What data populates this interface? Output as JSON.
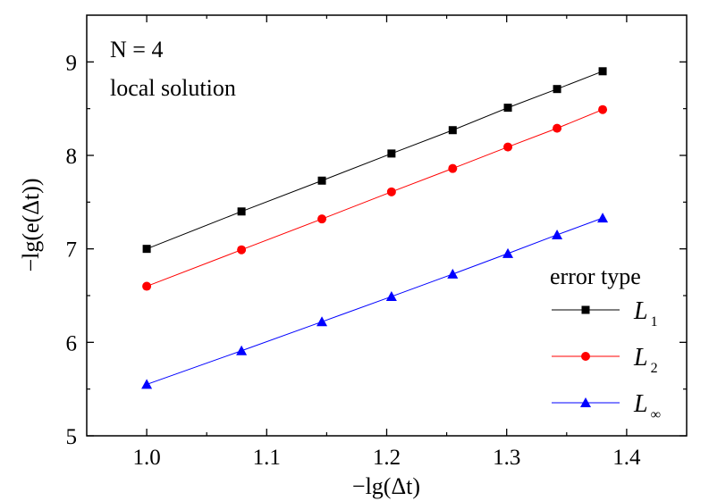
{
  "chart_data": {
    "type": "line",
    "annotations": [
      "N = 4",
      "local solution"
    ],
    "xlabel": "−lg(Δt)",
    "ylabel": "−lg(e(Δt))",
    "xlim": [
      0.95,
      1.45
    ],
    "ylim": [
      5,
      9.5
    ],
    "xticks": [
      "1.0",
      "1.1",
      "1.2",
      "1.3",
      "1.4"
    ],
    "yticks": [
      "5",
      "6",
      "7",
      "8",
      "9"
    ],
    "grid": false,
    "legend": {
      "title": "error type",
      "placement": "bottom-right",
      "entries": [
        {
          "main": "L",
          "sub": "1"
        },
        {
          "main": "L",
          "sub": "2"
        },
        {
          "main": "L",
          "sub": "∞"
        }
      ]
    },
    "x": [
      1.0,
      1.079,
      1.146,
      1.204,
      1.255,
      1.301,
      1.342,
      1.38
    ],
    "series": [
      {
        "color": "#000000",
        "marker": "square",
        "values": [
          7.0,
          7.4,
          7.73,
          8.02,
          8.27,
          8.51,
          8.71,
          8.9
        ]
      },
      {
        "color": "#ff0000",
        "marker": "circle",
        "values": [
          6.6,
          6.99,
          7.32,
          7.61,
          7.86,
          8.09,
          8.29,
          8.49
        ]
      },
      {
        "color": "#0000ff",
        "marker": "triangle",
        "values": [
          5.55,
          5.91,
          6.22,
          6.49,
          6.73,
          6.95,
          7.15,
          7.33
        ]
      }
    ]
  }
}
